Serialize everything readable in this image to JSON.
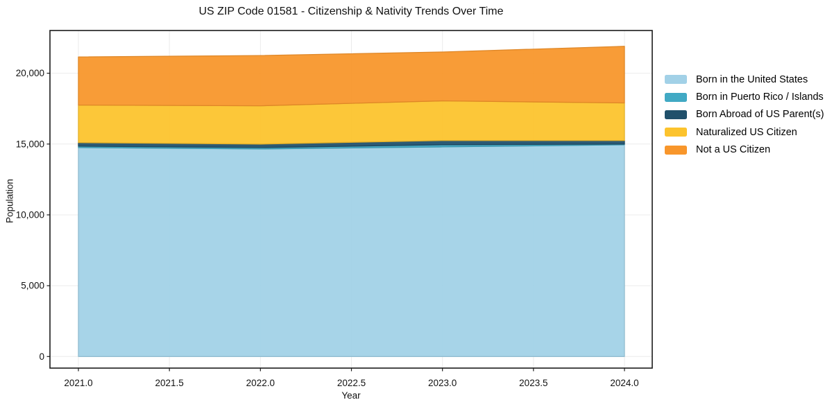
{
  "title": "US ZIP Code 01581 - Citizenship & Nativity Trends Over Time",
  "chart_data": {
    "type": "area",
    "stacked": true,
    "title": "US ZIP Code 01581 - Citizenship & Nativity Trends Over Time",
    "xlabel": "Year",
    "ylabel": "Population",
    "grid": true,
    "legend_position": "right-outside",
    "x": [
      2021,
      2022,
      2023,
      2024
    ],
    "series": [
      {
        "name": "Born in the United States",
        "color": "#a2d1e7",
        "values": [
          14750,
          14650,
          14800,
          14950
        ]
      },
      {
        "name": "Born in Puerto Rico / Islands",
        "color": "#41a9c4",
        "values": [
          100,
          100,
          150,
          50
        ]
      },
      {
        "name": "Born Abroad of US Parent(s)",
        "color": "#20506b",
        "values": [
          250,
          250,
          300,
          250
        ]
      },
      {
        "name": "Naturalized US Citizen",
        "color": "#fcc32d",
        "values": [
          2650,
          2700,
          2800,
          2650
        ]
      },
      {
        "name": "Not a US Citizen",
        "color": "#f8962b",
        "values": [
          3400,
          3550,
          3450,
          4000
        ]
      }
    ],
    "stack_totals": [
      21150,
      21250,
      21500,
      21900
    ],
    "xlim": [
      2020.85,
      2024.15
    ],
    "ylim": [
      -800,
      23000
    ],
    "x_ticks": [
      {
        "value": 2021.0,
        "label": "2021.0"
      },
      {
        "value": 2021.5,
        "label": "2021.5"
      },
      {
        "value": 2022.0,
        "label": "2022.0"
      },
      {
        "value": 2022.5,
        "label": "2022.5"
      },
      {
        "value": 2023.0,
        "label": "2023.0"
      },
      {
        "value": 2023.5,
        "label": "2023.5"
      },
      {
        "value": 2024.0,
        "label": "2024.0"
      }
    ],
    "y_ticks": [
      {
        "value": 0,
        "label": "0"
      },
      {
        "value": 5000,
        "label": "5,000"
      },
      {
        "value": 10000,
        "label": "10,000"
      },
      {
        "value": 15000,
        "label": "15,000"
      },
      {
        "value": 20000,
        "label": "20,000"
      }
    ],
    "grid_color": "#ebebeb",
    "frame_color": "#1a1a1a"
  }
}
